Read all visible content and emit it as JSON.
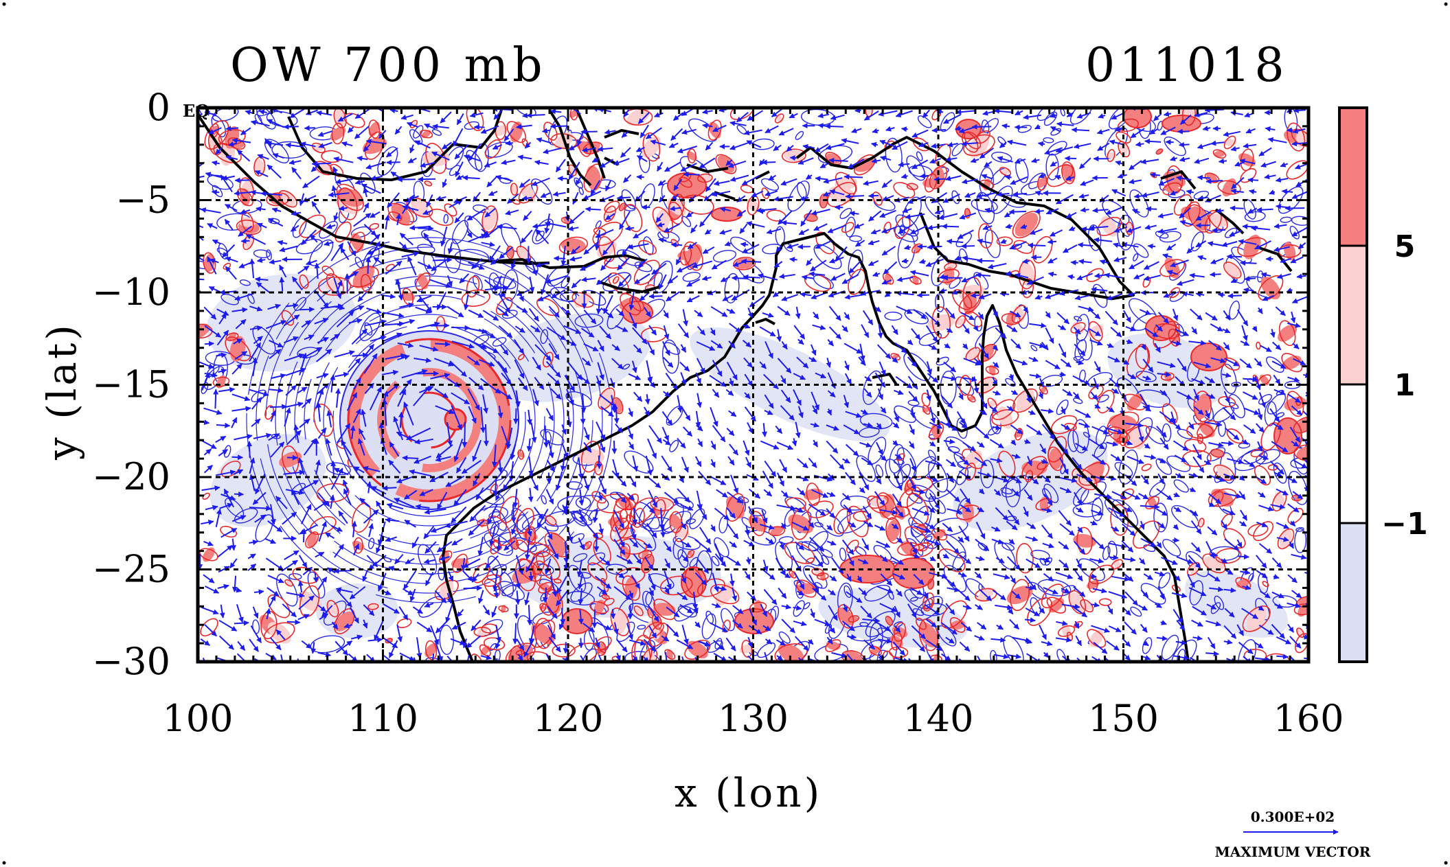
{
  "chart_data": {
    "type": "map",
    "title_left": "OW 700 mb",
    "title_right": "011018",
    "xlabel": "x (lon)",
    "ylabel": "y (lat)",
    "xlim": [
      100,
      160
    ],
    "ylim": [
      -30,
      0
    ],
    "x_ticks": [
      100,
      110,
      120,
      130,
      140,
      150,
      160
    ],
    "y_ticks": [
      0,
      -5,
      -10,
      -15,
      -20,
      -25,
      -30
    ],
    "x_tick_labels": [
      "100",
      "110",
      "120",
      "130",
      "140",
      "150",
      "160"
    ],
    "y_tick_labels": [
      "0",
      "−5",
      "−10",
      "−15",
      "−20",
      "−25",
      "−30"
    ],
    "equator_label": "EQ",
    "gridlines": true,
    "colorbar": {
      "bands": [
        {
          "range": "above 5",
          "color": "#f47f7f"
        },
        {
          "range": "1 to 5",
          "color": "#fad0d0"
        },
        {
          "range": "-1 to 1",
          "color": "#ffffff"
        },
        {
          "range": "below -1",
          "color": "#dde0f5"
        }
      ],
      "labels": [
        {
          "value": 5,
          "text": "5"
        },
        {
          "value": 1,
          "text": "1"
        },
        {
          "value": -1,
          "text": "−1"
        }
      ]
    },
    "vector_reference": {
      "value_label": "0.300E+02",
      "caption": "MAXIMUM VECTOR"
    },
    "features": [
      {
        "name": "tropical-cyclone-center",
        "lon": 113.7,
        "lat": -16.7,
        "ow_positive": true
      }
    ]
  },
  "colors": {
    "positive_contour": "#e8282a",
    "positive_fill": "#f47f7f",
    "light_positive_fill": "#fad0d0",
    "negative_contour": "#2828e6",
    "negative_fill": "#dde0f5",
    "coastline": "#000000",
    "wind_vector": "#1c1cf0"
  }
}
